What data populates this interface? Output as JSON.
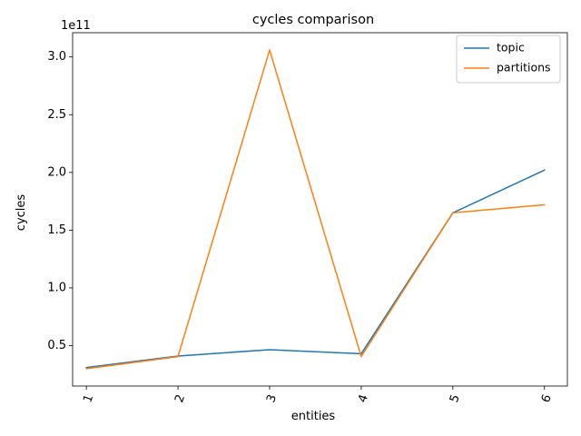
{
  "chart_data": {
    "type": "line",
    "title": "cycles comparison",
    "xlabel": "entities",
    "ylabel": "cycles",
    "offset_label": "1e11",
    "x": [
      1,
      2,
      3,
      4,
      5,
      6
    ],
    "x_tick_labels": [
      "1",
      "2",
      "3",
      "4",
      "5",
      "6"
    ],
    "x_tick_rotation_deg": -70,
    "xlim": [
      0.85,
      6.25
    ],
    "ylim": [
      0.15,
      3.21
    ],
    "y_ticks": [
      0.5,
      1.0,
      1.5,
      2.0,
      2.5,
      3.0
    ],
    "y_tick_labels": [
      "0.5",
      "1.0",
      "1.5",
      "2.0",
      "2.5",
      "3.0"
    ],
    "y_multiplier": 100000000000.0,
    "grid": false,
    "legend_position": "top-right",
    "series": [
      {
        "name": "topic",
        "color": "#1f77b4",
        "values": [
          0.31,
          0.41,
          0.465,
          0.43,
          1.65,
          2.02
        ]
      },
      {
        "name": "partitions",
        "color": "#ff7f0e",
        "values": [
          0.3,
          0.405,
          3.06,
          0.405,
          1.65,
          1.72
        ]
      }
    ]
  }
}
